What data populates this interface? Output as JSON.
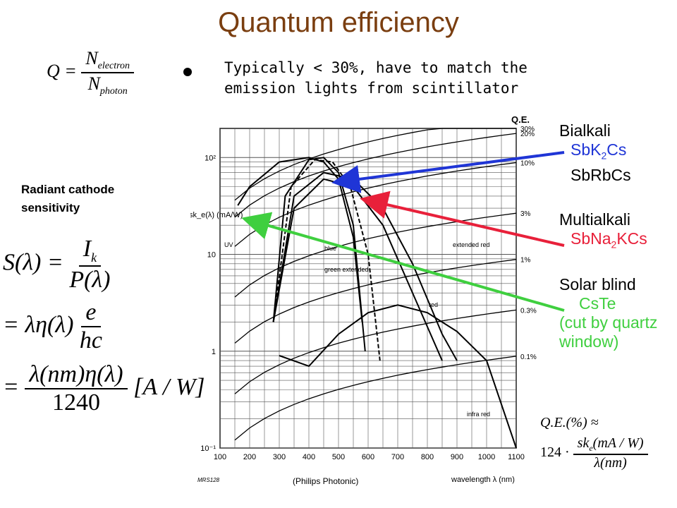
{
  "title": "Quantum efficiency",
  "bullet": "Typically < 30%, have to match the emission lights from scintillator",
  "q_formula": {
    "lhs": "Q",
    "num": "N",
    "num_sub": "electron",
    "den": "N",
    "den_sub": "photon"
  },
  "radiant_label": "Radiant cathode sensitivity",
  "s_formula": {
    "lhs": "S(λ)",
    "num1": "I",
    "num1_sub": "k",
    "den1": "P(λ)",
    "mid": "λη(λ)",
    "num2": "e",
    "den2": "hc",
    "num3": "λ(nm)η(λ)",
    "den3": "1240",
    "unit": "[A / W]"
  },
  "chart_data": {
    "type": "line",
    "xlabel": "wavelength λ (nm)",
    "ylabel": "sk_e(λ) (mA/W)",
    "xlim": [
      100,
      1100
    ],
    "ylim": [
      0.1,
      200
    ],
    "yscale": "log",
    "x_ticks": [
      "100",
      "200",
      "300",
      "400",
      "500",
      "600",
      "700",
      "800",
      "900",
      "1000",
      "1100"
    ],
    "y_ticks": [
      "10⁻¹",
      "1",
      "10",
      "10²"
    ],
    "qe_axis_title": "Q.E.",
    "qe_lines": [
      {
        "label": "30%",
        "value": 30
      },
      {
        "label": "20%",
        "value": 20
      },
      {
        "label": "10%",
        "value": 10
      },
      {
        "label": "3%",
        "value": 3
      },
      {
        "label": "1%",
        "value": 1
      },
      {
        "label": "0.3%",
        "value": 0.3
      },
      {
        "label": "0.1%",
        "value": 0.1
      }
    ],
    "curve_labels": [
      "UV",
      "blue",
      "green extended",
      "extended red",
      "red",
      "infra red"
    ],
    "series": [
      {
        "label": "UV",
        "points": [
          [
            160,
            32
          ],
          [
            200,
            50
          ],
          [
            300,
            90
          ],
          [
            400,
            100
          ],
          [
            450,
            90
          ],
          [
            500,
            60
          ],
          [
            550,
            15
          ],
          [
            580,
            2
          ]
        ]
      },
      {
        "label": "blue",
        "points": [
          [
            280,
            2
          ],
          [
            320,
            40
          ],
          [
            400,
            95
          ],
          [
            450,
            100
          ],
          [
            500,
            70
          ],
          [
            550,
            20
          ],
          [
            590,
            1
          ]
        ]
      },
      {
        "label": "green extended",
        "points": [
          [
            280,
            2
          ],
          [
            340,
            50
          ],
          [
            420,
            95
          ],
          [
            480,
            90
          ],
          [
            540,
            50
          ],
          [
            600,
            10
          ],
          [
            640,
            0.8
          ]
        ]
      },
      {
        "label": "extended red",
        "points": [
          [
            280,
            2
          ],
          [
            350,
            40
          ],
          [
            450,
            70
          ],
          [
            550,
            60
          ],
          [
            650,
            30
          ],
          [
            750,
            8
          ],
          [
            850,
            1.5
          ],
          [
            900,
            0.8
          ]
        ]
      },
      {
        "label": "red",
        "points": [
          [
            280,
            2
          ],
          [
            350,
            30
          ],
          [
            450,
            60
          ],
          [
            550,
            50
          ],
          [
            650,
            20
          ],
          [
            750,
            4
          ],
          [
            850,
            0.8
          ]
        ]
      },
      {
        "label": "infra red",
        "points": [
          [
            300,
            0.9
          ],
          [
            400,
            0.7
          ],
          [
            500,
            1.5
          ],
          [
            600,
            2.5
          ],
          [
            700,
            3
          ],
          [
            800,
            2.5
          ],
          [
            900,
            1.6
          ],
          [
            1000,
            0.8
          ],
          [
            1100,
            0.1
          ]
        ]
      }
    ],
    "source": "(Philips Photonic)",
    "code": "MRS128"
  },
  "labels_right": {
    "bialkali": "Bialkali",
    "sbk2cs_pre": "SbK",
    "sbk2cs_sub": "2",
    "sbk2cs_post": "Cs",
    "sbrbcs": "SbRbCs",
    "multialkali": "Multialkali",
    "sbna2kcs_pre": "SbNa",
    "sbna2kcs_sub": "2",
    "sbna2kcs_post": "KCs",
    "solar_blind": "Solar blind",
    "cste": "CsTe",
    "cut_note_1": "(cut by quartz",
    "cut_note_2": "window)"
  },
  "qe_formula": {
    "lhs": "Q.E.(%) ≈",
    "factor": "124 ·",
    "num": "sk",
    "num_sub": "e",
    "num_rest": "(mA / W)",
    "den": "λ(nm)"
  },
  "colors": {
    "title": "#7a3e10",
    "blue_arrow": "#1f35d6",
    "red_arrow": "#e8203a",
    "green_arrow": "#3fcf3f"
  }
}
